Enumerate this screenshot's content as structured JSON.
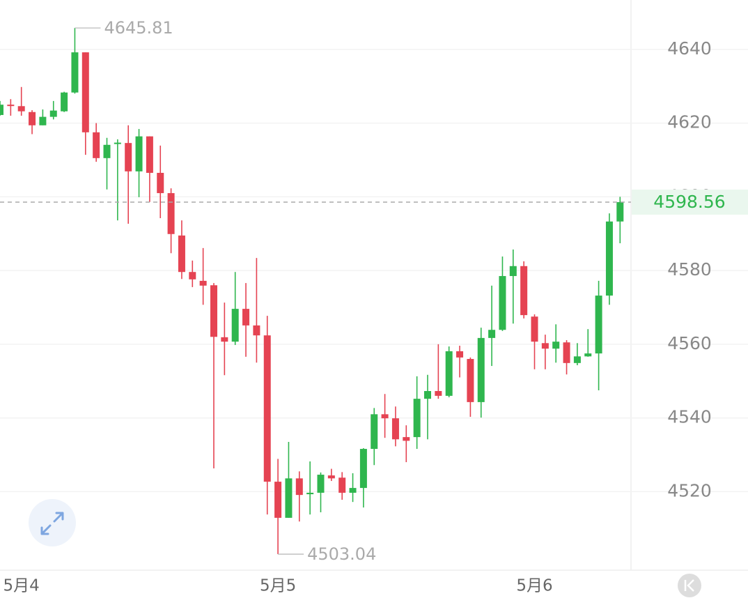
{
  "chart_data": {
    "type": "candlestick",
    "categories": [
      null,
      null,
      "5月4",
      null,
      null,
      null,
      null,
      null,
      null,
      null,
      null,
      null,
      null,
      null,
      null,
      null,
      null,
      null,
      null,
      null,
      null,
      null,
      null,
      null,
      null,
      null,
      "5月5",
      null,
      null,
      null,
      null,
      null,
      null,
      null,
      null,
      null,
      null,
      null,
      null,
      null,
      null,
      null,
      null,
      null,
      null,
      null,
      null,
      null,
      null,
      null,
      "5月6",
      null,
      null,
      null,
      null,
      null,
      null,
      null,
      null
    ],
    "open": [
      4622.2,
      4625,
      4624.6,
      4623,
      4619.4,
      4621.7,
      4623.2,
      4628.3,
      4639.2,
      4617.5,
      4610.5,
      4614.5,
      4614.6,
      4606.9,
      4616.4,
      4606.5,
      4601,
      4589.5,
      4579.6,
      4577.2,
      4576,
      4561.9,
      4560.7,
      4569.6,
      4565.1,
      4562.4,
      4522.7,
      4512.9,
      4523.6,
      4519.3,
      4519.7,
      4524.4,
      4523.8,
      4519.7,
      4521,
      4531.6,
      4541,
      4539.9,
      4534.8,
      4534.8,
      4545.2,
      4547.3,
      4546,
      4558.1,
      4556,
      4544.3,
      4561.7,
      4563.9,
      4578.5,
      4581.2,
      4567.5,
      4560.3,
      4558.8,
      4560.5,
      4554.9,
      4556.7,
      4557.5,
      4573.2,
      4593.3
    ],
    "high": [
      4626,
      4626.5,
      4629.8,
      4623.5,
      4623.7,
      4626,
      4628.5,
      4645.81,
      4639.2,
      4620,
      4616,
      4615.6,
      4619.4,
      4618.4,
      4616.4,
      4613.9,
      4602.3,
      4593.6,
      4582.7,
      4586.1,
      4576.6,
      4571.3,
      4579.6,
      4576.6,
      4583.4,
      4567.7,
      4528.9,
      4533.5,
      4525.5,
      4528.2,
      4525.2,
      4526.2,
      4525.3,
      4525,
      4531.8,
      4542.7,
      4546.5,
      4543.1,
      4538,
      4551.3,
      4551.7,
      4560,
      4559.4,
      4559.6,
      4556.4,
      4564.5,
      4575.9,
      4583.8,
      4585.7,
      4582.5,
      4568.1,
      4562.6,
      4565.4,
      4561.1,
      4560.3,
      4564.1,
      4577.2,
      4595.5,
      4600
    ],
    "low": [
      4622,
      4622,
      4622,
      4617,
      4619.4,
      4621,
      4623,
      4628,
      4611.4,
      4609.5,
      4602,
      4593.6,
      4592.7,
      4599.9,
      4598.6,
      4594.2,
      4584.7,
      4577.7,
      4575.5,
      4570.7,
      4526.3,
      4551.6,
      4559.8,
      4556.6,
      4555,
      4513.8,
      4503.04,
      4512.9,
      4511.9,
      4513.8,
      4514.4,
      4522.9,
      4517.8,
      4517.2,
      4515.7,
      4527.2,
      4534.6,
      4532.3,
      4528,
      4531.6,
      4534.2,
      4545.2,
      4545.6,
      4551,
      4540.3,
      4540.1,
      4554.1,
      4563.6,
      4565.6,
      4567,
      4553.2,
      4553.2,
      4555,
      4551.8,
      4554.3,
      4556.6,
      4547.5,
      4570.7,
      4587.4
    ],
    "close": [
      4625,
      4624.8,
      4623.2,
      4619.4,
      4621.7,
      4623.4,
      4628.3,
      4639.2,
      4617.5,
      4610.5,
      4614.1,
      4614.7,
      4606.9,
      4616.4,
      4606.5,
      4601,
      4589.9,
      4579.6,
      4577.6,
      4575.9,
      4562,
      4560.7,
      4569.6,
      4565.1,
      4562.4,
      4522.7,
      4512.9,
      4523.6,
      4519.1,
      4519.7,
      4524.6,
      4523.6,
      4519.7,
      4521,
      4531.6,
      4541,
      4539.9,
      4534.2,
      4533.8,
      4545.2,
      4547.3,
      4546,
      4558.1,
      4556.4,
      4544.3,
      4561.7,
      4563.9,
      4578.5,
      4581.2,
      4567.9,
      4560.7,
      4558.8,
      4560.7,
      4554.9,
      4556.7,
      4557.5,
      4573.2,
      4593.3,
      4598.56
    ],
    "up_color": "#2fb64e",
    "down_color": "#e54352",
    "ylim": [
      4498.7,
      4653.4
    ],
    "yticks": [
      4520,
      4540,
      4560,
      4580,
      4600,
      4620,
      4640
    ],
    "grid": true
  }
}
